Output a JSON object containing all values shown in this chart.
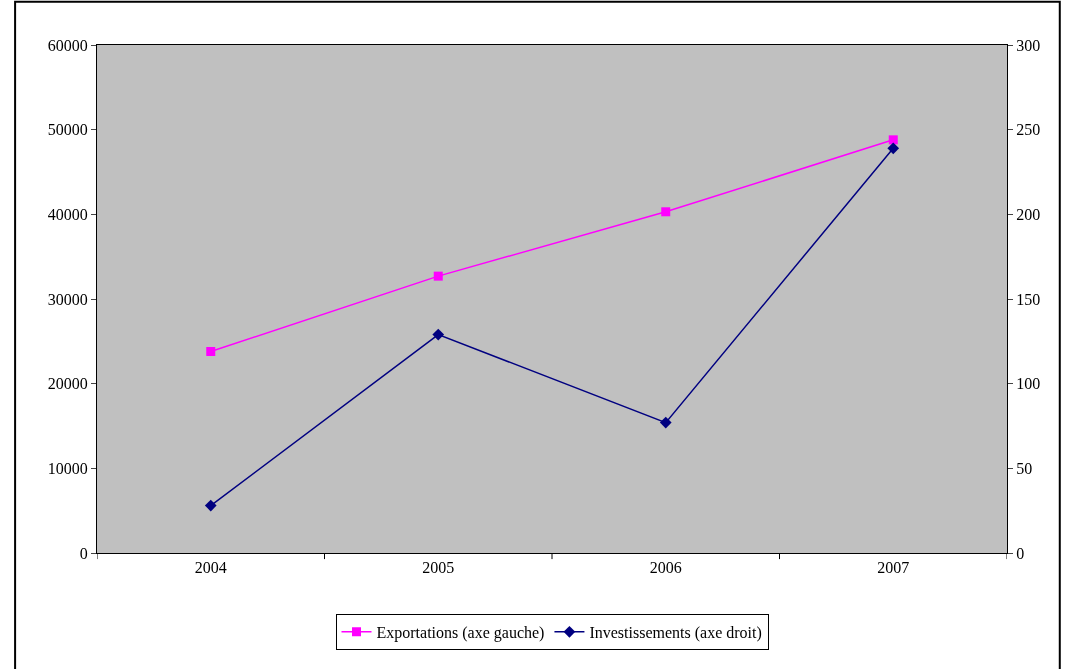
{
  "chart_data": {
    "type": "line",
    "categories": [
      "2004",
      "2005",
      "2006",
      "2007"
    ],
    "series": [
      {
        "name": "Exportations (axe gauche)",
        "color": "#ff00ff",
        "marker": "square",
        "values": [
          23800,
          32700,
          40300,
          48800
        ]
      },
      {
        "name": "Investissements (axe droit)",
        "color": "#000080",
        "marker": "diamond",
        "axis": "y2",
        "values": [
          28,
          129,
          77,
          239
        ]
      }
    ],
    "ylim": [
      0,
      60000
    ],
    "yticks": [
      0,
      10000,
      20000,
      30000,
      40000,
      50000,
      60000
    ],
    "y2lim": [
      0,
      300
    ],
    "y2ticks": [
      0,
      50,
      100,
      150,
      200,
      250,
      300
    ],
    "grid": false,
    "legend": "bottom",
    "line_style": "solid"
  }
}
